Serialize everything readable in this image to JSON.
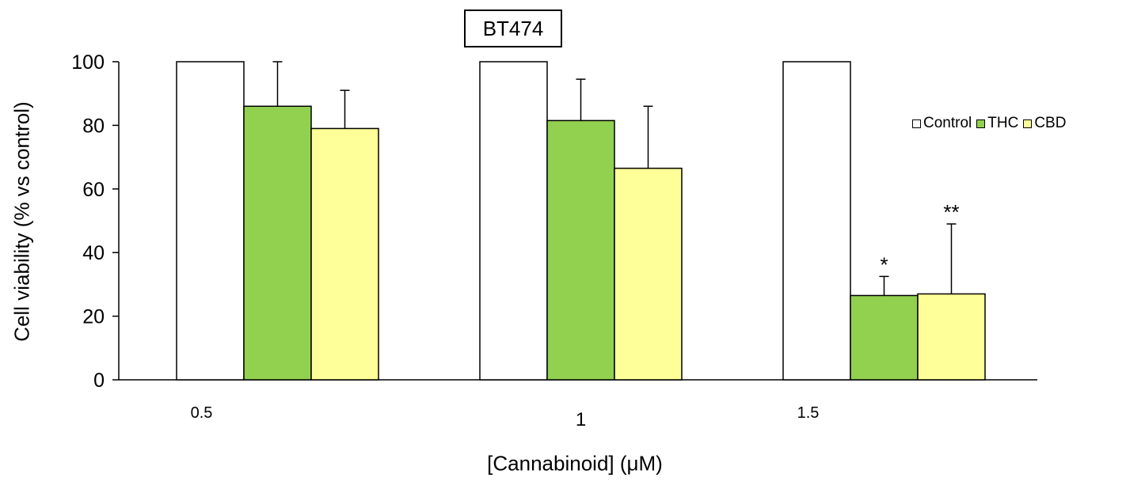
{
  "chart_data": {
    "type": "bar",
    "title": "BT474",
    "xlabel": "[Cannabinoid] (μM)",
    "ylabel": "Cell viability (% vs control)",
    "categories": [
      "0.5",
      "1",
      "1.5"
    ],
    "ylim": [
      0,
      100
    ],
    "yticks": [
      0,
      20,
      40,
      60,
      80,
      100
    ],
    "grid": false,
    "legend_position": "right",
    "series": [
      {
        "name": "Control",
        "color": "#ffffff",
        "values": [
          100,
          100,
          100
        ],
        "errors": [
          0,
          0,
          0
        ],
        "annotations": [
          "",
          "",
          ""
        ]
      },
      {
        "name": "THC",
        "color": "#92d050",
        "values": [
          86,
          81.5,
          26.5
        ],
        "errors": [
          14,
          13,
          6
        ],
        "annotations": [
          "",
          "",
          "*"
        ]
      },
      {
        "name": "CBD",
        "color": "#ffff99",
        "values": [
          79,
          66.5,
          27
        ],
        "errors": [
          12,
          19.5,
          22
        ],
        "annotations": [
          "",
          "",
          "**"
        ]
      }
    ]
  }
}
